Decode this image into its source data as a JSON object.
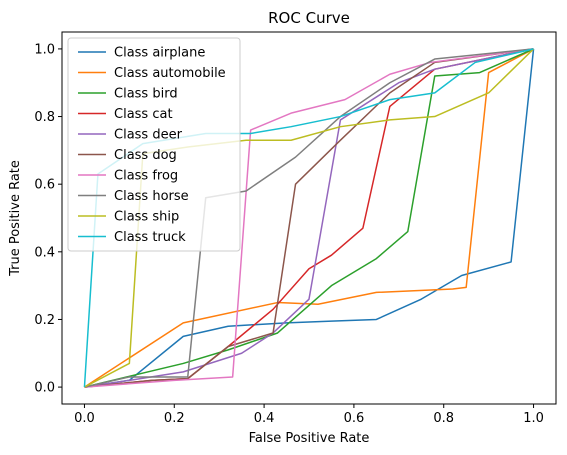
{
  "chart_data": {
    "type": "line",
    "title": "ROC Curve",
    "xlabel": "False Positive Rate",
    "ylabel": "True Positive Rate",
    "xlim": [
      -0.05,
      1.05
    ],
    "ylim": [
      -0.05,
      1.05
    ],
    "xticks": [
      "0.0",
      "0.2",
      "0.4",
      "0.6",
      "0.8",
      "1.0"
    ],
    "yticks": [
      "0.0",
      "0.2",
      "0.4",
      "0.6",
      "0.8",
      "1.0"
    ],
    "grid": false,
    "legend_position": "upper-left",
    "series": [
      {
        "name": "Class airplane",
        "color": "#1f77b4",
        "points": [
          [
            0,
            0
          ],
          [
            0.1,
            0.02
          ],
          [
            0.22,
            0.15
          ],
          [
            0.32,
            0.18
          ],
          [
            0.45,
            0.19
          ],
          [
            0.55,
            0.195
          ],
          [
            0.65,
            0.2
          ],
          [
            0.75,
            0.26
          ],
          [
            0.84,
            0.33
          ],
          [
            0.95,
            0.37
          ],
          [
            1.0,
            1.0
          ]
        ]
      },
      {
        "name": "Class automobile",
        "color": "#ff7f0e",
        "points": [
          [
            0,
            0
          ],
          [
            0.22,
            0.19
          ],
          [
            0.43,
            0.25
          ],
          [
            0.52,
            0.245
          ],
          [
            0.65,
            0.28
          ],
          [
            0.82,
            0.29
          ],
          [
            0.85,
            0.295
          ],
          [
            0.9,
            0.93
          ],
          [
            1.0,
            1.0
          ]
        ]
      },
      {
        "name": "Class bird",
        "color": "#2ca02c",
        "points": [
          [
            0,
            0
          ],
          [
            0.22,
            0.07
          ],
          [
            0.32,
            0.11
          ],
          [
            0.43,
            0.16
          ],
          [
            0.55,
            0.3
          ],
          [
            0.65,
            0.38
          ],
          [
            0.72,
            0.46
          ],
          [
            0.78,
            0.92
          ],
          [
            0.88,
            0.93
          ],
          [
            1.0,
            1.0
          ]
        ]
      },
      {
        "name": "Class cat",
        "color": "#d62728",
        "points": [
          [
            0,
            0
          ],
          [
            0.15,
            0.02
          ],
          [
            0.23,
            0.025
          ],
          [
            0.32,
            0.12
          ],
          [
            0.42,
            0.23
          ],
          [
            0.5,
            0.35
          ],
          [
            0.55,
            0.39
          ],
          [
            0.62,
            0.47
          ],
          [
            0.68,
            0.83
          ],
          [
            0.78,
            0.94
          ],
          [
            1.0,
            1.0
          ]
        ]
      },
      {
        "name": "Class deer",
        "color": "#9467bd",
        "points": [
          [
            0,
            0
          ],
          [
            0.1,
            0.02
          ],
          [
            0.22,
            0.045
          ],
          [
            0.35,
            0.1
          ],
          [
            0.42,
            0.16
          ],
          [
            0.5,
            0.26
          ],
          [
            0.57,
            0.79
          ],
          [
            0.7,
            0.9
          ],
          [
            0.78,
            0.94
          ],
          [
            1.0,
            1.0
          ]
        ]
      },
      {
        "name": "Class dog",
        "color": "#8c564b",
        "points": [
          [
            0,
            0
          ],
          [
            0.15,
            0.02
          ],
          [
            0.23,
            0.025
          ],
          [
            0.32,
            0.12
          ],
          [
            0.42,
            0.16
          ],
          [
            0.47,
            0.6
          ],
          [
            0.57,
            0.73
          ],
          [
            0.68,
            0.87
          ],
          [
            0.78,
            0.96
          ],
          [
            1.0,
            1.0
          ]
        ]
      },
      {
        "name": "Class frog",
        "color": "#e377c2",
        "points": [
          [
            0,
            0
          ],
          [
            0.2,
            0.02
          ],
          [
            0.33,
            0.03
          ],
          [
            0.37,
            0.76
          ],
          [
            0.46,
            0.81
          ],
          [
            0.58,
            0.85
          ],
          [
            0.68,
            0.925
          ],
          [
            0.77,
            0.96
          ],
          [
            1.0,
            1.0
          ]
        ]
      },
      {
        "name": "Class horse",
        "color": "#7f7f7f",
        "points": [
          [
            0,
            0
          ],
          [
            0.1,
            0.03
          ],
          [
            0.23,
            0.03
          ],
          [
            0.27,
            0.56
          ],
          [
            0.36,
            0.58
          ],
          [
            0.47,
            0.68
          ],
          [
            0.57,
            0.8
          ],
          [
            0.68,
            0.9
          ],
          [
            0.78,
            0.97
          ],
          [
            1.0,
            1.0
          ]
        ]
      },
      {
        "name": "Class ship",
        "color": "#bcbd22",
        "points": [
          [
            0,
            0
          ],
          [
            0.1,
            0.07
          ],
          [
            0.13,
            0.69
          ],
          [
            0.23,
            0.71
          ],
          [
            0.36,
            0.73
          ],
          [
            0.46,
            0.73
          ],
          [
            0.57,
            0.77
          ],
          [
            0.68,
            0.79
          ],
          [
            0.78,
            0.8
          ],
          [
            0.9,
            0.87
          ],
          [
            1.0,
            1.0
          ]
        ]
      },
      {
        "name": "Class truck",
        "color": "#17becf",
        "points": [
          [
            0,
            0
          ],
          [
            0.03,
            0.63
          ],
          [
            0.13,
            0.72
          ],
          [
            0.27,
            0.75
          ],
          [
            0.37,
            0.75
          ],
          [
            0.46,
            0.77
          ],
          [
            0.57,
            0.8
          ],
          [
            0.68,
            0.85
          ],
          [
            0.78,
            0.87
          ],
          [
            0.87,
            0.96
          ],
          [
            1.0,
            1.0
          ]
        ]
      }
    ]
  }
}
